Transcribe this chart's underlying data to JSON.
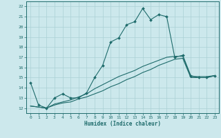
{
  "xlabel": "Humidex (Indice chaleur)",
  "bg_color": "#cce8ec",
  "grid_color": "#aad0d5",
  "line_color": "#1e6b6b",
  "xlim": [
    -0.5,
    23.5
  ],
  "ylim": [
    11.5,
    22.5
  ],
  "xticks": [
    0,
    1,
    2,
    3,
    4,
    5,
    6,
    7,
    8,
    9,
    10,
    11,
    12,
    13,
    14,
    15,
    16,
    17,
    18,
    19,
    20,
    21,
    22,
    23
  ],
  "yticks": [
    12,
    13,
    14,
    15,
    16,
    17,
    18,
    19,
    20,
    21,
    22
  ],
  "line1_x": [
    0,
    1,
    2,
    3,
    4,
    5,
    6,
    7,
    8,
    9,
    10,
    11,
    12,
    13,
    14,
    15,
    16,
    17,
    18,
    19,
    20,
    21,
    22,
    23
  ],
  "line1_y": [
    14.5,
    12.3,
    12.0,
    13.0,
    13.4,
    13.0,
    13.0,
    13.5,
    15.0,
    16.2,
    18.5,
    18.9,
    20.2,
    20.5,
    21.8,
    20.7,
    21.2,
    21.0,
    17.0,
    17.2,
    15.2,
    15.0,
    15.0,
    15.2
  ],
  "line2_x": [
    0,
    1,
    2,
    3,
    4,
    5,
    6,
    7,
    8,
    9,
    10,
    11,
    12,
    13,
    14,
    15,
    16,
    17,
    18,
    19,
    20,
    21,
    22,
    23
  ],
  "line2_y": [
    12.2,
    12.1,
    12.0,
    12.3,
    12.5,
    12.6,
    12.9,
    13.1,
    13.4,
    13.7,
    14.1,
    14.4,
    14.8,
    15.1,
    15.5,
    15.8,
    16.2,
    16.5,
    16.8,
    16.9,
    15.0,
    15.0,
    15.0,
    15.2
  ],
  "line3_x": [
    0,
    1,
    2,
    3,
    4,
    5,
    6,
    7,
    8,
    9,
    10,
    11,
    12,
    13,
    14,
    15,
    16,
    17,
    18,
    19,
    20,
    21,
    22,
    23
  ],
  "line3_y": [
    12.2,
    12.1,
    12.0,
    12.4,
    12.6,
    12.8,
    13.1,
    13.4,
    13.9,
    14.3,
    14.7,
    15.1,
    15.4,
    15.7,
    16.1,
    16.4,
    16.7,
    17.0,
    17.1,
    17.1,
    15.1,
    15.1,
    15.1,
    15.2
  ]
}
